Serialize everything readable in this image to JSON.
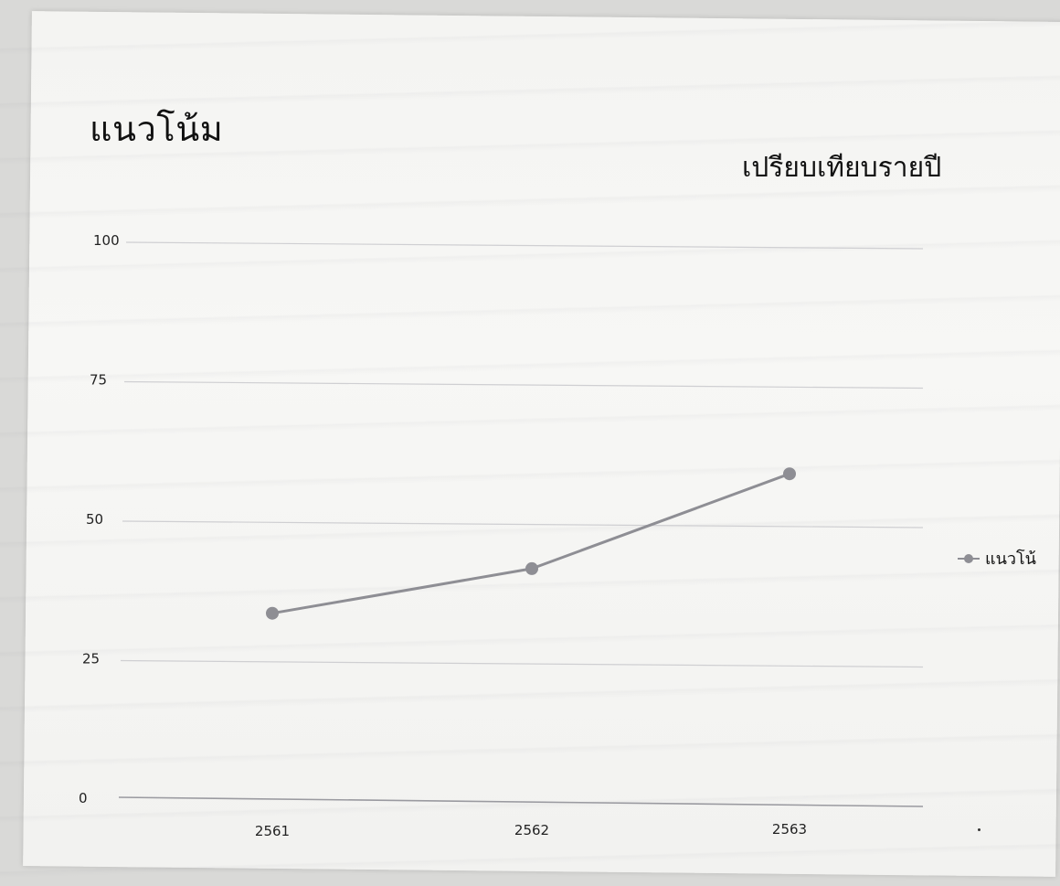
{
  "chart_data": {
    "type": "line",
    "title": "แนวโน้ม",
    "subtitle": "เปรียบเทียบรายปี",
    "categories": [
      "2561",
      "2562",
      "2563"
    ],
    "series": [
      {
        "name": "แนวโน้",
        "values": [
          33,
          41,
          58
        ]
      }
    ],
    "ylim": [
      0,
      100
    ],
    "yticks": [
      "0",
      "25",
      "50",
      "75",
      "100"
    ],
    "grid": true,
    "legend_position": "right",
    "line_color": "#8e8e94",
    "marker_color": "#8e8e94"
  }
}
